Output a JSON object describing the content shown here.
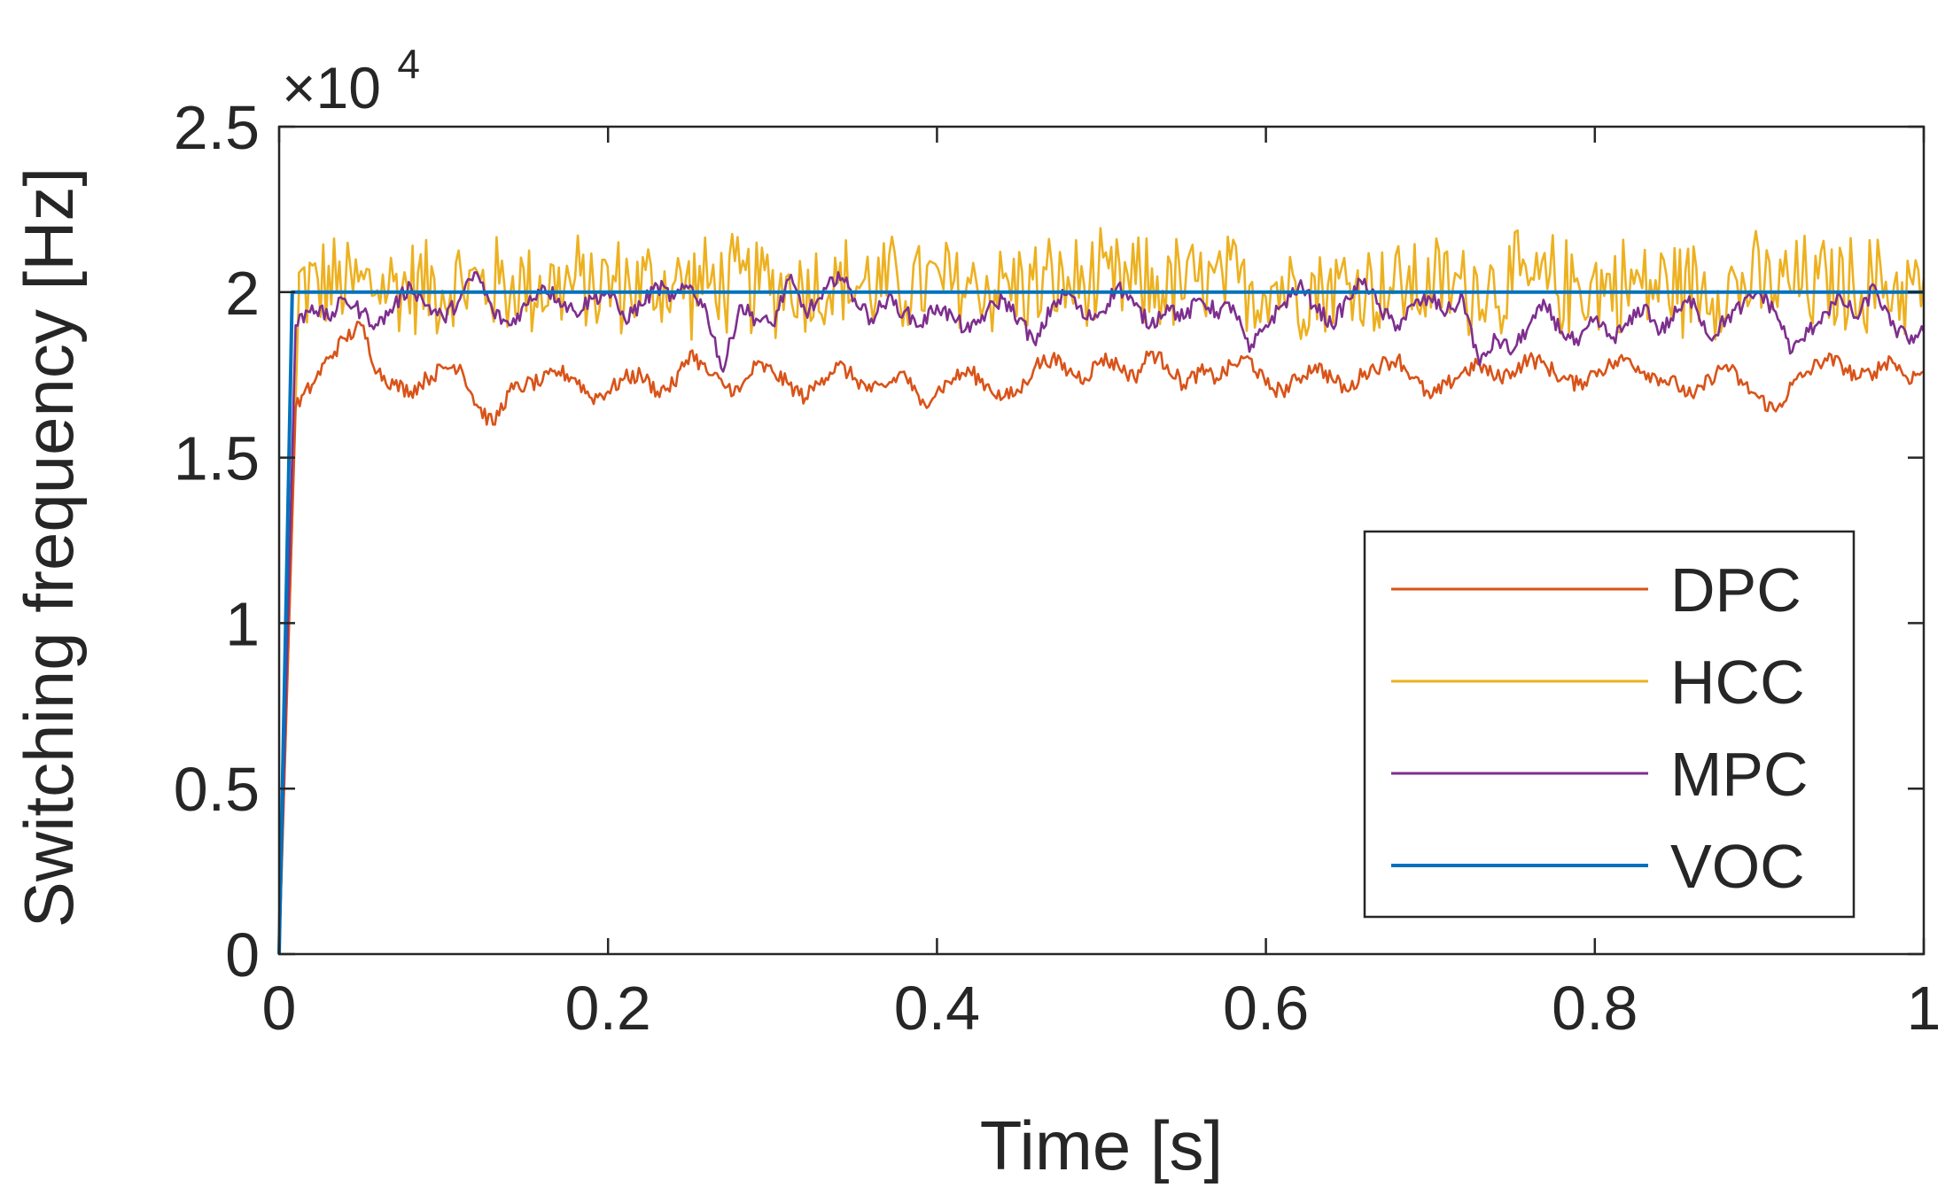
{
  "chart_data": {
    "type": "line",
    "title": "",
    "xlabel": "Time [s]",
    "ylabel": "Switching frequency [Hz]",
    "y_multiplier_label": "×10",
    "y_multiplier_exponent": "4",
    "xlim": [
      0,
      1
    ],
    "ylim": [
      0,
      2.5
    ],
    "xticks": [
      0,
      0.2,
      0.4,
      0.6,
      0.8,
      1
    ],
    "xtick_labels": [
      "0",
      "0.2",
      "0.4",
      "0.6",
      "0.8",
      "1"
    ],
    "yticks": [
      0,
      0.5,
      1,
      1.5,
      2,
      2.5
    ],
    "ytick_labels": [
      "0",
      "0.5",
      "1",
      "1.5",
      "2",
      "2.5"
    ],
    "legend_position": "right",
    "series": [
      {
        "name": "DPC",
        "color": "#D95319",
        "rise": {
          "t_end": 0.01,
          "v_end": 1.65
        },
        "samples": [
          [
            0.01,
            1.65
          ],
          [
            0.02,
            1.72
          ],
          [
            0.03,
            1.8
          ],
          [
            0.04,
            1.86
          ],
          [
            0.05,
            1.9
          ],
          [
            0.06,
            1.76
          ],
          [
            0.07,
            1.72
          ],
          [
            0.08,
            1.7
          ],
          [
            0.09,
            1.74
          ],
          [
            0.1,
            1.77
          ],
          [
            0.11,
            1.78
          ],
          [
            0.12,
            1.66
          ],
          [
            0.13,
            1.6
          ],
          [
            0.14,
            1.7
          ],
          [
            0.15,
            1.72
          ],
          [
            0.16,
            1.73
          ],
          [
            0.17,
            1.76
          ],
          [
            0.18,
            1.74
          ],
          [
            0.19,
            1.68
          ],
          [
            0.2,
            1.7
          ],
          [
            0.21,
            1.74
          ],
          [
            0.22,
            1.75
          ],
          [
            0.23,
            1.7
          ],
          [
            0.24,
            1.72
          ],
          [
            0.25,
            1.82
          ],
          [
            0.26,
            1.76
          ],
          [
            0.27,
            1.72
          ],
          [
            0.28,
            1.7
          ],
          [
            0.29,
            1.78
          ],
          [
            0.3,
            1.76
          ],
          [
            0.31,
            1.72
          ],
          [
            0.32,
            1.68
          ],
          [
            0.33,
            1.74
          ],
          [
            0.34,
            1.78
          ],
          [
            0.35,
            1.74
          ],
          [
            0.36,
            1.7
          ],
          [
            0.37,
            1.72
          ],
          [
            0.38,
            1.76
          ],
          [
            0.39,
            1.66
          ],
          [
            0.4,
            1.7
          ],
          [
            0.41,
            1.74
          ],
          [
            0.42,
            1.76
          ],
          [
            0.43,
            1.72
          ],
          [
            0.44,
            1.68
          ],
          [
            0.45,
            1.7
          ],
          [
            0.46,
            1.78
          ],
          [
            0.47,
            1.8
          ],
          [
            0.48,
            1.76
          ],
          [
            0.49,
            1.74
          ],
          [
            0.5,
            1.8
          ],
          [
            0.51,
            1.78
          ],
          [
            0.52,
            1.74
          ],
          [
            0.53,
            1.82
          ],
          [
            0.54,
            1.78
          ],
          [
            0.55,
            1.72
          ],
          [
            0.56,
            1.76
          ],
          [
            0.57,
            1.74
          ],
          [
            0.58,
            1.78
          ],
          [
            0.59,
            1.8
          ],
          [
            0.6,
            1.72
          ],
          [
            0.61,
            1.7
          ],
          [
            0.62,
            1.74
          ],
          [
            0.63,
            1.78
          ],
          [
            0.64,
            1.74
          ],
          [
            0.65,
            1.7
          ],
          [
            0.66,
            1.76
          ],
          [
            0.67,
            1.78
          ],
          [
            0.68,
            1.8
          ],
          [
            0.69,
            1.74
          ],
          [
            0.7,
            1.68
          ],
          [
            0.71,
            1.72
          ],
          [
            0.72,
            1.76
          ],
          [
            0.73,
            1.78
          ],
          [
            0.74,
            1.74
          ],
          [
            0.75,
            1.76
          ],
          [
            0.76,
            1.8
          ],
          [
            0.77,
            1.78
          ],
          [
            0.78,
            1.74
          ],
          [
            0.79,
            1.72
          ],
          [
            0.8,
            1.76
          ],
          [
            0.81,
            1.78
          ],
          [
            0.82,
            1.8
          ],
          [
            0.83,
            1.76
          ],
          [
            0.84,
            1.74
          ],
          [
            0.85,
            1.72
          ],
          [
            0.86,
            1.68
          ],
          [
            0.87,
            1.74
          ],
          [
            0.88,
            1.78
          ],
          [
            0.89,
            1.72
          ],
          [
            0.9,
            1.68
          ],
          [
            0.91,
            1.64
          ],
          [
            0.92,
            1.72
          ],
          [
            0.93,
            1.76
          ],
          [
            0.94,
            1.8
          ],
          [
            0.95,
            1.78
          ],
          [
            0.96,
            1.74
          ],
          [
            0.97,
            1.76
          ],
          [
            0.98,
            1.8
          ],
          [
            0.99,
            1.74
          ],
          [
            1.0,
            1.76
          ]
        ]
      },
      {
        "name": "HCC",
        "color": "#EDB120",
        "rise": {
          "t_end": 0.012,
          "v_end": 2.0
        },
        "mean": 2.02,
        "amplitude": 0.18,
        "samples_count": 600
      },
      {
        "name": "MPC",
        "color": "#7E2F8E",
        "rise": {
          "t_end": 0.01,
          "v_end": 1.9
        },
        "samples": [
          [
            0.01,
            1.9
          ],
          [
            0.02,
            1.96
          ],
          [
            0.03,
            1.92
          ],
          [
            0.04,
            1.98
          ],
          [
            0.05,
            1.94
          ],
          [
            0.06,
            1.9
          ],
          [
            0.07,
            1.96
          ],
          [
            0.08,
            2.02
          ],
          [
            0.09,
            1.96
          ],
          [
            0.1,
            1.92
          ],
          [
            0.11,
            1.98
          ],
          [
            0.12,
            2.06
          ],
          [
            0.13,
            1.94
          ],
          [
            0.14,
            1.9
          ],
          [
            0.15,
            1.96
          ],
          [
            0.16,
            2.02
          ],
          [
            0.17,
            1.98
          ],
          [
            0.18,
            1.94
          ],
          [
            0.19,
            1.98
          ],
          [
            0.2,
            2.0
          ],
          [
            0.21,
            1.92
          ],
          [
            0.22,
            1.96
          ],
          [
            0.23,
            2.02
          ],
          [
            0.24,
            1.98
          ],
          [
            0.25,
            2.02
          ],
          [
            0.26,
            1.94
          ],
          [
            0.27,
            1.76
          ],
          [
            0.28,
            1.96
          ],
          [
            0.29,
            1.92
          ],
          [
            0.3,
            1.9
          ],
          [
            0.31,
            2.04
          ],
          [
            0.32,
            1.94
          ],
          [
            0.33,
            1.98
          ],
          [
            0.34,
            2.06
          ],
          [
            0.35,
            1.98
          ],
          [
            0.36,
            1.92
          ],
          [
            0.37,
            1.98
          ],
          [
            0.38,
            1.94
          ],
          [
            0.39,
            1.9
          ],
          [
            0.4,
            1.96
          ],
          [
            0.41,
            1.92
          ],
          [
            0.42,
            1.88
          ],
          [
            0.43,
            1.94
          ],
          [
            0.44,
            1.98
          ],
          [
            0.45,
            1.92
          ],
          [
            0.46,
            1.84
          ],
          [
            0.47,
            1.96
          ],
          [
            0.48,
            2.0
          ],
          [
            0.49,
            1.92
          ],
          [
            0.5,
            1.94
          ],
          [
            0.51,
            2.02
          ],
          [
            0.52,
            1.96
          ],
          [
            0.53,
            1.9
          ],
          [
            0.54,
            1.96
          ],
          [
            0.55,
            1.92
          ],
          [
            0.56,
            1.98
          ],
          [
            0.57,
            1.94
          ],
          [
            0.58,
            1.96
          ],
          [
            0.59,
            1.82
          ],
          [
            0.6,
            1.9
          ],
          [
            0.61,
            1.96
          ],
          [
            0.62,
            2.02
          ],
          [
            0.63,
            1.96
          ],
          [
            0.64,
            1.9
          ],
          [
            0.65,
            1.98
          ],
          [
            0.66,
            2.04
          ],
          [
            0.67,
            1.94
          ],
          [
            0.68,
            1.9
          ],
          [
            0.69,
            1.96
          ],
          [
            0.7,
            1.98
          ],
          [
            0.71,
            1.94
          ],
          [
            0.72,
            1.98
          ],
          [
            0.73,
            1.78
          ],
          [
            0.74,
            1.86
          ],
          [
            0.75,
            1.82
          ],
          [
            0.76,
            1.9
          ],
          [
            0.77,
            1.96
          ],
          [
            0.78,
            1.88
          ],
          [
            0.79,
            1.84
          ],
          [
            0.8,
            1.92
          ],
          [
            0.81,
            1.86
          ],
          [
            0.82,
            1.9
          ],
          [
            0.83,
            1.96
          ],
          [
            0.84,
            1.88
          ],
          [
            0.85,
            1.94
          ],
          [
            0.86,
            1.98
          ],
          [
            0.87,
            1.86
          ],
          [
            0.88,
            1.92
          ],
          [
            0.89,
            1.96
          ],
          [
            0.9,
            2.0
          ],
          [
            0.91,
            1.94
          ],
          [
            0.92,
            1.82
          ],
          [
            0.93,
            1.88
          ],
          [
            0.94,
            1.94
          ],
          [
            0.95,
            1.98
          ],
          [
            0.96,
            1.92
          ],
          [
            0.97,
            2.02
          ],
          [
            0.98,
            1.9
          ],
          [
            0.99,
            1.86
          ],
          [
            1.0,
            1.88
          ]
        ]
      },
      {
        "name": "VOC",
        "color": "#0072BD",
        "rise": {
          "t_end": 0.008,
          "v_end": 2.0
        },
        "samples": [
          [
            0.008,
            2.0
          ],
          [
            1.0,
            2.0
          ]
        ]
      }
    ]
  }
}
